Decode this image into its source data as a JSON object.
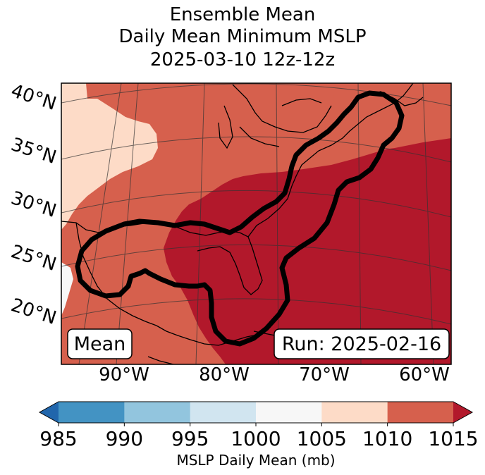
{
  "title": {
    "line1": "Ensemble Mean",
    "line2": "Daily Mean Minimum MSLP",
    "line3": "2025-03-10 12z-12z"
  },
  "map": {
    "lat_labels": [
      "40°N",
      "35°N",
      "30°N",
      "25°N",
      "20°N"
    ],
    "lon_labels": [
      "90°W",
      "80°W",
      "70°W",
      "60°W"
    ],
    "left_box": "Mean",
    "right_box": "Run: 2025-02-16",
    "fill_colors": {
      "1000-1005": "#f7f7f7",
      "1005-1010": "#fddbc7",
      "1010-1015": "#d6604d",
      "1015+": "#b2182b"
    }
  },
  "colorbar": {
    "ticks": [
      "985",
      "990",
      "995",
      "1000",
      "1005",
      "1010",
      "1015"
    ],
    "label": "MSLP Daily Mean (mb)",
    "colors": [
      "#2166ac",
      "#4393c3",
      "#92c5de",
      "#d1e5f0",
      "#f7f7f7",
      "#fddbc7",
      "#d6604d",
      "#b2182b"
    ]
  }
}
